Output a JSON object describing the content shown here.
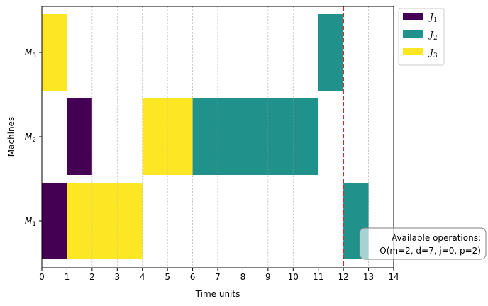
{
  "chart_data": {
    "type": "gantt",
    "xlabel": "Time units",
    "ylabel": "Machines",
    "xlim": [
      0,
      14
    ],
    "xticks": [
      0,
      1,
      2,
      3,
      4,
      5,
      6,
      7,
      8,
      9,
      10,
      11,
      12,
      13,
      14
    ],
    "machines": [
      {
        "id": "M1",
        "base": "M",
        "sub": "1"
      },
      {
        "id": "M2",
        "base": "M",
        "sub": "2"
      },
      {
        "id": "M3",
        "base": "M",
        "sub": "3"
      }
    ],
    "jobs": [
      {
        "id": "J1",
        "base": "J",
        "sub": "1",
        "color": "#440154"
      },
      {
        "id": "J2",
        "base": "J",
        "sub": "2",
        "color": "#21918c"
      },
      {
        "id": "J3",
        "base": "J",
        "sub": "3",
        "color": "#fde725"
      }
    ],
    "tasks": [
      {
        "machine": "M1",
        "job": "J1",
        "start": 0,
        "end": 1
      },
      {
        "machine": "M1",
        "job": "J3",
        "start": 1,
        "end": 4
      },
      {
        "machine": "M1",
        "job": "J2",
        "start": 12,
        "end": 13
      },
      {
        "machine": "M2",
        "job": "J1",
        "start": 1,
        "end": 2
      },
      {
        "machine": "M2",
        "job": "J3",
        "start": 4,
        "end": 6
      },
      {
        "machine": "M2",
        "job": "J2",
        "start": 6,
        "end": 11
      },
      {
        "machine": "M3",
        "job": "J3",
        "start": 0,
        "end": 1
      },
      {
        "machine": "M3",
        "job": "J2",
        "start": 11,
        "end": 12
      }
    ],
    "current_time": 12,
    "current_time_color": "#d62728",
    "grid": "vertical-dashed",
    "legend_position": "outside-top-right",
    "annotation": {
      "line1": "Available operations:",
      "line2": "O(m=2, d=7, j=0, p=2)"
    }
  }
}
